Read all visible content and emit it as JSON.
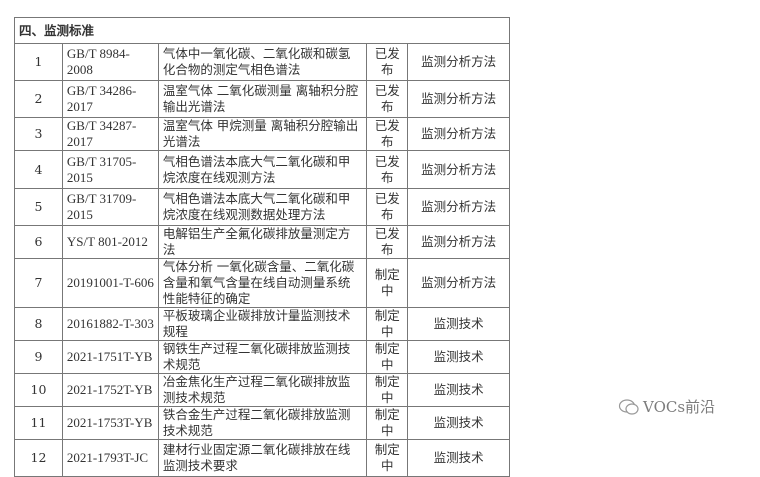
{
  "section_title": "四、监测标准",
  "rows": [
    {
      "no": "1",
      "code": "GB/T 8984-2008",
      "name": "气体中一氧化碳、二氧化碳和碳氢化合物的测定气相色谱法",
      "status": "已发布",
      "type": "监测分析方法"
    },
    {
      "no": "2",
      "code": "GB/T 34286-2017",
      "name": "温室气体 二氧化碳测量 离轴积分腔输出光谱法",
      "status": "已发布",
      "type": "监测分析方法"
    },
    {
      "no": "3",
      "code": "GB/T 34287-2017",
      "name": "温室气体 甲烷测量 离轴积分腔输出光谱法",
      "status": "已发布",
      "type": "监测分析方法"
    },
    {
      "no": "4",
      "code": "GB/T 31705-2015",
      "name": "气相色谱法本底大气二氧化碳和甲烷浓度在线观测方法",
      "status": "已发布",
      "type": "监测分析方法"
    },
    {
      "no": "5",
      "code": "GB/T 31709-2015",
      "name": "气相色谱法本底大气二氧化碳和甲烷浓度在线观测数据处理方法",
      "status": "已发布",
      "type": "监测分析方法"
    },
    {
      "no": "6",
      "code": "YS/T 801-2012",
      "name": "电解铝生产全氟化碳排放量测定方法",
      "status": "已发布",
      "type": "监测分析方法"
    },
    {
      "no": "7",
      "code": "20191001-T-606",
      "name": "气体分析 一氧化碳含量、二氧化碳含量和氧气含量在线自动测量系统 性能特征的确定",
      "status": "制定中",
      "type": "监测分析方法"
    },
    {
      "no": "8",
      "code": "20161882-T-303",
      "name": "平板玻璃企业碳排放计量监测技术规程",
      "status": "制定中",
      "type": "监测技术"
    },
    {
      "no": "9",
      "code": "2021-1751T-YB",
      "name": "钢铁生产过程二氧化碳排放监测技术规范",
      "status": "制定中",
      "type": "监测技术"
    },
    {
      "no": "10",
      "code": "2021-1752T-YB",
      "name": "冶金焦化生产过程二氧化碳排放监测技术规范",
      "status": "制定中",
      "type": "监测技术"
    },
    {
      "no": "11",
      "code": "2021-1753T-YB",
      "name": "铁合金生产过程二氧化碳排放监测技术规范",
      "status": "制定中",
      "type": "监测技术"
    },
    {
      "no": "12",
      "code": "2021-1793T-JC",
      "name": "建材行业固定源二氧化碳排放在线监测技术要求",
      "status": "制定中",
      "type": "监测技术"
    }
  ],
  "watermark": {
    "text": "VOCs前沿",
    "icon": "wechat-icon"
  }
}
